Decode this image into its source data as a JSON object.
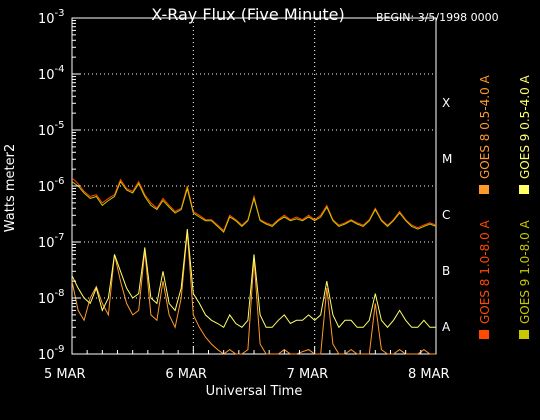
{
  "chart_data": {
    "type": "line",
    "title": "X-Ray Flux (Five Minute)",
    "begin_label": "BEGIN: 3/5/1998 0000",
    "xlabel": "Universal Time",
    "ylabel": "Watts meter2",
    "y_scale": "log",
    "ylim": [
      1e-09,
      0.001
    ],
    "xlim_days": [
      "5 MAR",
      "8 MAR"
    ],
    "x_ticks": [
      "5 MAR",
      "6 MAR",
      "7 MAR",
      "8 MAR"
    ],
    "y_ticks": [
      {
        "value": 1e-09,
        "base": "10",
        "exp": "-9"
      },
      {
        "value": 1e-08,
        "base": "10",
        "exp": "-8"
      },
      {
        "value": 1e-07,
        "base": "10",
        "exp": "-7"
      },
      {
        "value": 1e-06,
        "base": "10",
        "exp": "-6"
      },
      {
        "value": 1e-05,
        "base": "10",
        "exp": "-5"
      },
      {
        "value": 0.0001,
        "base": "10",
        "exp": "-4"
      },
      {
        "value": 0.001,
        "base": "10",
        "exp": "-3"
      }
    ],
    "flare_classes": [
      {
        "label": "A",
        "value": 1e-08
      },
      {
        "label": "B",
        "value": 1e-07
      },
      {
        "label": "C",
        "value": 1e-06
      },
      {
        "label": "M",
        "value": 1e-05
      },
      {
        "label": "X",
        "value": 0.0001
      }
    ],
    "grid": "dotted at class levels and day boundaries",
    "legend_placement": "right, vertical",
    "series": [
      {
        "name": "GOES 8 1.0-8.0 A",
        "color": "#ff4a00",
        "points": [
          [
            0,
            1.4e-06
          ],
          [
            0.05,
            1.1e-06
          ],
          [
            0.1,
            8e-07
          ],
          [
            0.15,
            6.5e-07
          ],
          [
            0.2,
            7e-07
          ],
          [
            0.25,
            5e-07
          ],
          [
            0.3,
            6e-07
          ],
          [
            0.35,
            7e-07
          ],
          [
            0.4,
            1.3e-06
          ],
          [
            0.45,
            9e-07
          ],
          [
            0.5,
            8e-07
          ],
          [
            0.55,
            1.2e-06
          ],
          [
            0.6,
            7e-07
          ],
          [
            0.65,
            5e-07
          ],
          [
            0.7,
            4e-07
          ],
          [
            0.75,
            6e-07
          ],
          [
            0.8,
            4.5e-07
          ],
          [
            0.85,
            3.5e-07
          ],
          [
            0.9,
            4e-07
          ],
          [
            0.95,
            1e-06
          ],
          [
            1.0,
            3.5e-07
          ],
          [
            1.05,
            3e-07
          ],
          [
            1.1,
            2.5e-07
          ],
          [
            1.15,
            2.5e-07
          ],
          [
            1.2,
            2e-07
          ],
          [
            1.25,
            1.6e-07
          ],
          [
            1.3,
            3e-07
          ],
          [
            1.35,
            2.5e-07
          ],
          [
            1.4,
            2e-07
          ],
          [
            1.45,
            2.5e-07
          ],
          [
            1.5,
            6.5e-07
          ],
          [
            1.55,
            2.5e-07
          ],
          [
            1.6,
            2.2e-07
          ],
          [
            1.65,
            2e-07
          ],
          [
            1.7,
            2.5e-07
          ],
          [
            1.75,
            3e-07
          ],
          [
            1.8,
            2.5e-07
          ],
          [
            1.85,
            2.8e-07
          ],
          [
            1.9,
            2.5e-07
          ],
          [
            1.95,
            3e-07
          ],
          [
            2.0,
            2.5e-07
          ],
          [
            2.05,
            3e-07
          ],
          [
            2.1,
            4.5e-07
          ],
          [
            2.15,
            2.5e-07
          ],
          [
            2.2,
            2e-07
          ],
          [
            2.25,
            2.2e-07
          ],
          [
            2.3,
            2.5e-07
          ],
          [
            2.35,
            2.2e-07
          ],
          [
            2.4,
            2e-07
          ],
          [
            2.45,
            2.5e-07
          ],
          [
            2.5,
            4e-07
          ],
          [
            2.55,
            2.5e-07
          ],
          [
            2.6,
            2e-07
          ],
          [
            2.65,
            2.5e-07
          ],
          [
            2.7,
            3.5e-07
          ],
          [
            2.75,
            2.5e-07
          ],
          [
            2.8,
            2e-07
          ],
          [
            2.85,
            1.8e-07
          ],
          [
            2.9,
            2e-07
          ],
          [
            2.95,
            2.2e-07
          ],
          [
            3.0,
            2e-07
          ]
        ]
      },
      {
        "name": "GOES 8 0.5-4.0 A",
        "color": "#ff9a2a",
        "points": [
          [
            0,
            2e-08
          ],
          [
            0.05,
            6e-09
          ],
          [
            0.1,
            4e-09
          ],
          [
            0.15,
            1e-08
          ],
          [
            0.2,
            1.6e-08
          ],
          [
            0.25,
            8e-09
          ],
          [
            0.3,
            5e-09
          ],
          [
            0.35,
            6e-08
          ],
          [
            0.4,
            2e-08
          ],
          [
            0.45,
            8e-09
          ],
          [
            0.5,
            5e-09
          ],
          [
            0.55,
            6e-09
          ],
          [
            0.6,
            7e-08
          ],
          [
            0.65,
            5e-09
          ],
          [
            0.7,
            4e-09
          ],
          [
            0.75,
            2e-08
          ],
          [
            0.8,
            5e-09
          ],
          [
            0.85,
            3e-09
          ],
          [
            0.9,
            1e-08
          ],
          [
            0.95,
            1.5e-07
          ],
          [
            1.0,
            5e-09
          ],
          [
            1.05,
            3e-09
          ],
          [
            1.1,
            2e-09
          ],
          [
            1.15,
            1.5e-09
          ],
          [
            1.2,
            1.2e-09
          ],
          [
            1.25,
            1e-09
          ],
          [
            1.3,
            1.2e-09
          ],
          [
            1.35,
            1e-09
          ],
          [
            1.4,
            1e-09
          ],
          [
            1.45,
            1.2e-09
          ],
          [
            1.5,
            5e-08
          ],
          [
            1.55,
            1.5e-09
          ],
          [
            1.6,
            1e-09
          ],
          [
            1.65,
            1e-09
          ],
          [
            1.7,
            1e-09
          ],
          [
            1.75,
            1.2e-09
          ],
          [
            1.8,
            1e-09
          ],
          [
            1.85,
            1e-09
          ],
          [
            1.9,
            1.1e-09
          ],
          [
            1.95,
            1.2e-09
          ],
          [
            2.0,
            1e-09
          ],
          [
            2.05,
            1e-09
          ],
          [
            2.1,
            1.5e-08
          ],
          [
            2.15,
            1.5e-09
          ],
          [
            2.2,
            1e-09
          ],
          [
            2.25,
            1e-09
          ],
          [
            2.3,
            1.2e-09
          ],
          [
            2.35,
            1e-09
          ],
          [
            2.4,
            1e-09
          ],
          [
            2.45,
            1e-09
          ],
          [
            2.5,
            8e-09
          ],
          [
            2.55,
            1.2e-09
          ],
          [
            2.6,
            1e-09
          ],
          [
            2.65,
            1e-09
          ],
          [
            2.7,
            1.2e-09
          ],
          [
            2.75,
            1e-09
          ],
          [
            2.8,
            1e-09
          ],
          [
            2.85,
            1e-09
          ],
          [
            2.9,
            1.2e-09
          ],
          [
            2.95,
            1e-09
          ],
          [
            3.0,
            1e-09
          ]
        ]
      },
      {
        "name": "GOES 9 1.0-8.0 A",
        "color": "#c8c800",
        "points": [
          [
            0,
            1.2e-06
          ],
          [
            0.05,
            1e-06
          ],
          [
            0.1,
            7.5e-07
          ],
          [
            0.15,
            6e-07
          ],
          [
            0.2,
            6.5e-07
          ],
          [
            0.25,
            4.5e-07
          ],
          [
            0.3,
            5.5e-07
          ],
          [
            0.35,
            6.5e-07
          ],
          [
            0.4,
            1.2e-06
          ],
          [
            0.45,
            8.5e-07
          ],
          [
            0.5,
            7.5e-07
          ],
          [
            0.55,
            1.1e-06
          ],
          [
            0.6,
            6.5e-07
          ],
          [
            0.65,
            4.5e-07
          ],
          [
            0.7,
            3.8e-07
          ],
          [
            0.75,
            5.5e-07
          ],
          [
            0.8,
            4.2e-07
          ],
          [
            0.85,
            3.3e-07
          ],
          [
            0.9,
            3.8e-07
          ],
          [
            0.95,
            9e-07
          ],
          [
            1.0,
            3.3e-07
          ],
          [
            1.05,
            2.8e-07
          ],
          [
            1.1,
            2.4e-07
          ],
          [
            1.15,
            2.4e-07
          ],
          [
            1.2,
            1.9e-07
          ],
          [
            1.25,
            1.5e-07
          ],
          [
            1.3,
            2.8e-07
          ],
          [
            1.35,
            2.4e-07
          ],
          [
            1.4,
            1.9e-07
          ],
          [
            1.45,
            2.4e-07
          ],
          [
            1.5,
            6e-07
          ],
          [
            1.55,
            2.4e-07
          ],
          [
            1.6,
            2.1e-07
          ],
          [
            1.65,
            1.9e-07
          ],
          [
            1.7,
            2.4e-07
          ],
          [
            1.75,
            2.8e-07
          ],
          [
            1.8,
            2.4e-07
          ],
          [
            1.85,
            2.6e-07
          ],
          [
            1.9,
            2.4e-07
          ],
          [
            1.95,
            2.8e-07
          ],
          [
            2.0,
            2.4e-07
          ],
          [
            2.05,
            2.8e-07
          ],
          [
            2.1,
            4.2e-07
          ],
          [
            2.15,
            2.4e-07
          ],
          [
            2.2,
            1.9e-07
          ],
          [
            2.25,
            2.1e-07
          ],
          [
            2.3,
            2.4e-07
          ],
          [
            2.35,
            2.1e-07
          ],
          [
            2.4,
            1.9e-07
          ],
          [
            2.45,
            2.4e-07
          ],
          [
            2.5,
            3.8e-07
          ],
          [
            2.55,
            2.4e-07
          ],
          [
            2.6,
            1.9e-07
          ],
          [
            2.65,
            2.4e-07
          ],
          [
            2.7,
            3.3e-07
          ],
          [
            2.75,
            2.4e-07
          ],
          [
            2.8,
            1.9e-07
          ],
          [
            2.85,
            1.7e-07
          ],
          [
            2.9,
            1.9e-07
          ],
          [
            2.95,
            2.1e-07
          ],
          [
            3.0,
            1.9e-07
          ]
        ]
      },
      {
        "name": "GOES 9 0.5-4.0 A",
        "color": "#ffff66",
        "points": [
          [
            0,
            2.5e-08
          ],
          [
            0.05,
            1.5e-08
          ],
          [
            0.1,
            1e-08
          ],
          [
            0.15,
            8e-09
          ],
          [
            0.2,
            1.5e-08
          ],
          [
            0.25,
            6e-09
          ],
          [
            0.3,
            1e-08
          ],
          [
            0.35,
            6e-08
          ],
          [
            0.4,
            3e-08
          ],
          [
            0.45,
            1.5e-08
          ],
          [
            0.5,
            1e-08
          ],
          [
            0.55,
            1.2e-08
          ],
          [
            0.6,
            8e-08
          ],
          [
            0.65,
            1e-08
          ],
          [
            0.7,
            8e-09
          ],
          [
            0.75,
            3e-08
          ],
          [
            0.8,
            8e-09
          ],
          [
            0.85,
            6e-09
          ],
          [
            0.9,
            1.5e-08
          ],
          [
            0.95,
            1.7e-07
          ],
          [
            1.0,
            1.2e-08
          ],
          [
            1.05,
            8e-09
          ],
          [
            1.1,
            5e-09
          ],
          [
            1.15,
            4e-09
          ],
          [
            1.2,
            3.5e-09
          ],
          [
            1.25,
            3e-09
          ],
          [
            1.3,
            5e-09
          ],
          [
            1.35,
            3.5e-09
          ],
          [
            1.4,
            3e-09
          ],
          [
            1.45,
            4e-09
          ],
          [
            1.5,
            6e-08
          ],
          [
            1.55,
            5e-09
          ],
          [
            1.6,
            3e-09
          ],
          [
            1.65,
            3e-09
          ],
          [
            1.7,
            4e-09
          ],
          [
            1.75,
            5e-09
          ],
          [
            1.8,
            3.5e-09
          ],
          [
            1.85,
            4e-09
          ],
          [
            1.9,
            4e-09
          ],
          [
            1.95,
            5e-09
          ],
          [
            2.0,
            4e-09
          ],
          [
            2.05,
            5e-09
          ],
          [
            2.1,
            2e-08
          ],
          [
            2.15,
            5e-09
          ],
          [
            2.2,
            3e-09
          ],
          [
            2.25,
            4e-09
          ],
          [
            2.3,
            4e-09
          ],
          [
            2.35,
            3e-09
          ],
          [
            2.4,
            3e-09
          ],
          [
            2.45,
            4e-09
          ],
          [
            2.5,
            1.2e-08
          ],
          [
            2.55,
            4e-09
          ],
          [
            2.6,
            3e-09
          ],
          [
            2.65,
            4e-09
          ],
          [
            2.7,
            6e-09
          ],
          [
            2.75,
            4e-09
          ],
          [
            2.8,
            3e-09
          ],
          [
            2.85,
            3e-09
          ],
          [
            2.9,
            4e-09
          ],
          [
            2.95,
            3e-09
          ],
          [
            3.0,
            3e-09
          ]
        ]
      }
    ]
  }
}
